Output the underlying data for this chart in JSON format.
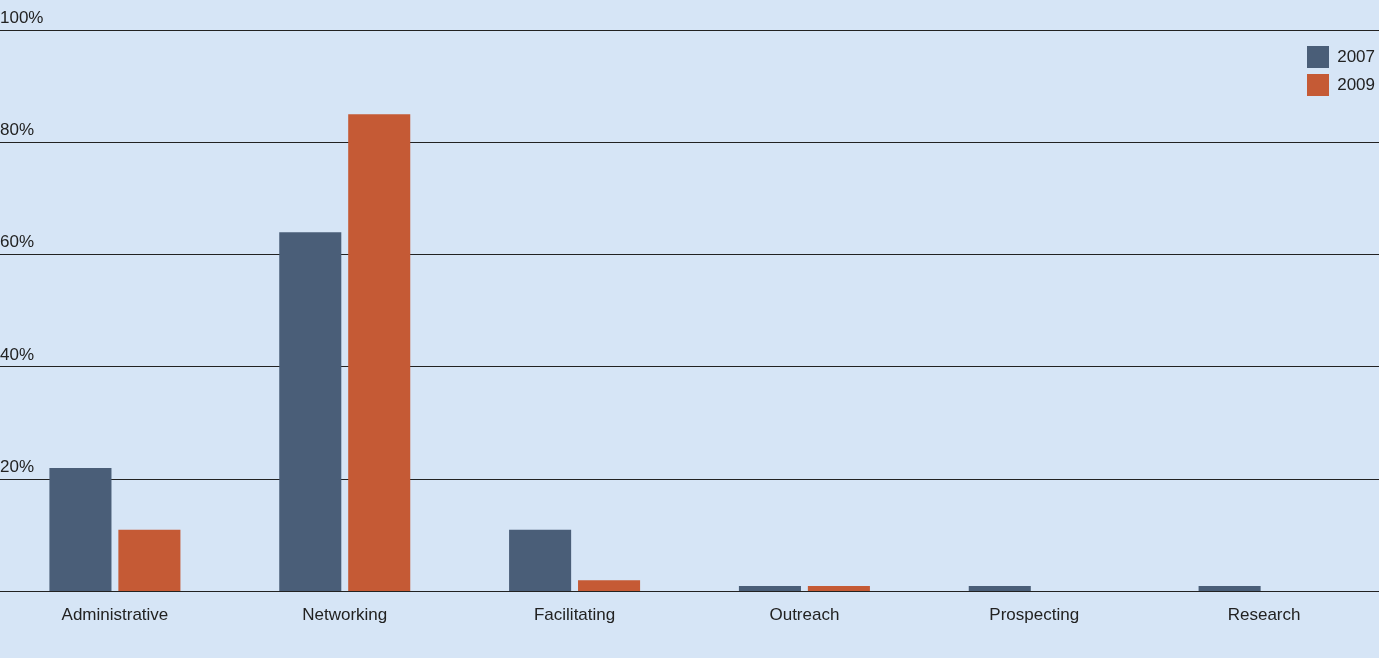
{
  "chart_data": {
    "type": "bar",
    "categories": [
      "Administrative",
      "Networking",
      "Facilitating",
      "Outreach",
      "Prospecting",
      "Research"
    ],
    "series": [
      {
        "name": "2007",
        "color": "#4a5e78",
        "values": [
          22,
          64,
          11,
          1,
          1,
          1
        ]
      },
      {
        "name": "2009",
        "color": "#c55a35",
        "values": [
          11,
          85,
          2,
          1,
          0,
          0
        ]
      }
    ],
    "ylim": [
      0,
      100
    ],
    "yticks": [
      {
        "value": 0,
        "label": null
      },
      {
        "value": 20,
        "label": "20%"
      },
      {
        "value": 40,
        "label": "40%"
      },
      {
        "value": 60,
        "label": "60%"
      },
      {
        "value": 80,
        "label": "80%"
      },
      {
        "value": 100,
        "label": "100%"
      }
    ],
    "grid": "y",
    "legend": "top right"
  }
}
